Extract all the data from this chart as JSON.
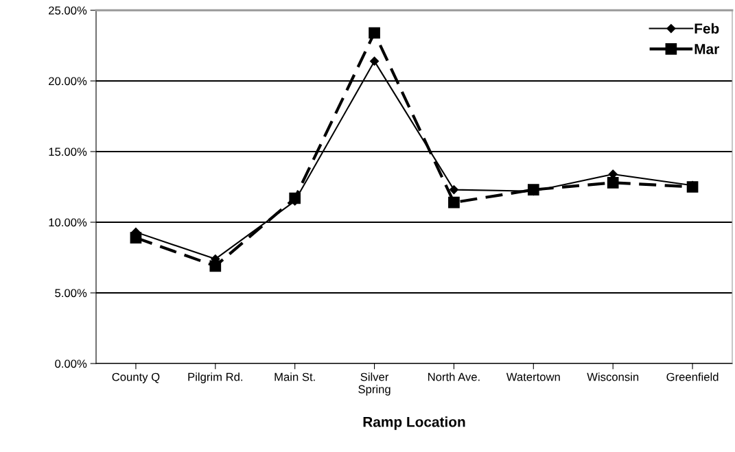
{
  "chart_data": {
    "type": "line",
    "xlabel": "Ramp Location",
    "categories": [
      "County Q",
      "Pilgrim Rd.",
      "Main St.",
      "Silver\nSpring",
      "North Ave.",
      "Watertown",
      "Wisconsin",
      "Greenfield"
    ],
    "series": [
      {
        "name": "Feb",
        "color": "#000000",
        "marker": "diamond",
        "line_style": "solid",
        "values": [
          9.3,
          7.4,
          11.5,
          21.4,
          12.3,
          12.2,
          13.4,
          12.6
        ]
      },
      {
        "name": "Mar",
        "color": "#000000",
        "marker": "square",
        "line_style": "dashed",
        "values": [
          8.9,
          6.9,
          11.7,
          23.4,
          11.4,
          12.3,
          12.8,
          12.5
        ]
      }
    ],
    "ylim": [
      0,
      25
    ],
    "yticks": [
      {
        "value": 0,
        "label": "0.00%"
      },
      {
        "value": 5,
        "label": "5.00%"
      },
      {
        "value": 10,
        "label": "10.00%"
      },
      {
        "value": 15,
        "label": "15.00%"
      },
      {
        "value": 20,
        "label": "20.00%"
      },
      {
        "value": 25,
        "label": "25.00%"
      }
    ],
    "grid": "y",
    "legend": "top right"
  }
}
